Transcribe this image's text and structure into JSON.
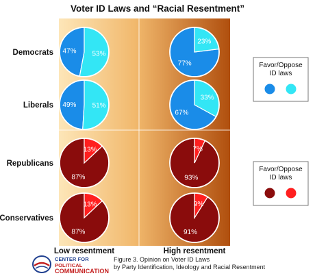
{
  "chart_data": {
    "type": "pie",
    "title": "Voter ID Laws and “Racial Resentment”",
    "columns": [
      "Low resentment",
      "High resentment"
    ],
    "rows": [
      "Democrats",
      "Liberals",
      "Republicans",
      "Conservatives"
    ],
    "pies": [
      {
        "row": "Democrats",
        "column": "Low resentment",
        "favor": 47,
        "oppose": 53,
        "group": "blue"
      },
      {
        "row": "Democrats",
        "column": "High resentment",
        "favor": 77,
        "oppose": 23,
        "group": "blue"
      },
      {
        "row": "Liberals",
        "column": "Low resentment",
        "favor": 49,
        "oppose": 51,
        "group": "blue"
      },
      {
        "row": "Liberals",
        "column": "High resentment",
        "favor": 67,
        "oppose": 33,
        "group": "blue"
      },
      {
        "row": "Republicans",
        "column": "Low resentment",
        "favor": 87,
        "oppose": 13,
        "group": "red"
      },
      {
        "row": "Republicans",
        "column": "High resentment",
        "favor": 93,
        "oppose": 7,
        "group": "red"
      },
      {
        "row": "Conservatives",
        "column": "Low resentment",
        "favor": 87,
        "oppose": 13,
        "group": "red"
      },
      {
        "row": "Conservatives",
        "column": "High resentment",
        "favor": 91,
        "oppose": 9,
        "group": "red"
      }
    ],
    "legends": [
      {
        "title_lines": [
          "Favor/Oppose",
          "ID laws"
        ],
        "group": "blue"
      },
      {
        "title_lines": [
          "Favor/Oppose",
          "ID laws"
        ],
        "group": "red"
      }
    ],
    "percent_suffix": "%"
  },
  "colors": {
    "blue_favor": "#1a8ce8",
    "blue_oppose": "#33e6f5",
    "red_favor": "#8a0c0c",
    "red_oppose": "#ff1f1f",
    "background_light": "#fde6b8",
    "background_dark": "#b04f0e"
  },
  "caption": {
    "line1": "Figure 3. Opinion on Voter ID Laws",
    "line2": "by Party Identification, Ideology and Racial Resentment"
  },
  "logo": {
    "line1": "CENTER FOR",
    "line1_accent": "POLITICAL",
    "line2": "COMMUNICATION"
  }
}
